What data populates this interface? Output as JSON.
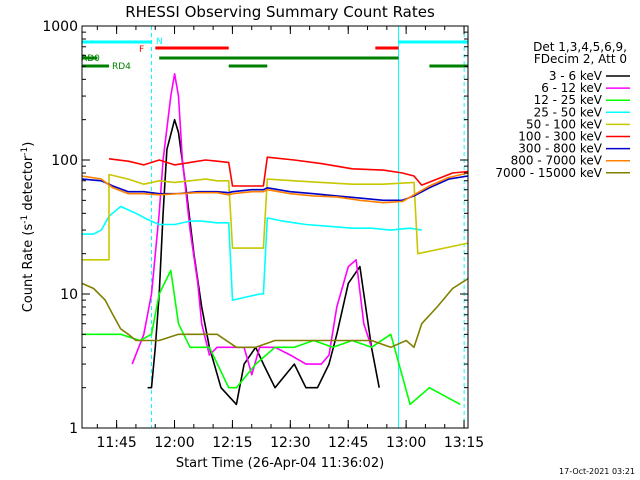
{
  "chart_data": {
    "type": "line",
    "title": "RHESSI Observing Summary Count Rates",
    "xlabel": "Start Time (26-Apr-04 11:36:02)",
    "ylabel_main": "Count Rate (s",
    "ylabel_sup1": "-1",
    "ylabel_mid": " detector",
    "ylabel_sup2": "-1",
    "ylabel_end": ")",
    "y_scale": "log",
    "ylim": [
      1,
      1000
    ],
    "xlim_minutes": [
      0,
      100
    ],
    "x_ticks": [
      {
        "label": "11:45",
        "t": 8.97
      },
      {
        "label": "12:00",
        "t": 23.97
      },
      {
        "label": "12:15",
        "t": 38.97
      },
      {
        "label": "12:30",
        "t": 53.97
      },
      {
        "label": "12:45",
        "t": 68.97
      },
      {
        "label": "13:00",
        "t": 83.97
      },
      {
        "label": "13:15",
        "t": 98.97
      }
    ],
    "y_ticks": [
      {
        "label": "1",
        "v": 1
      },
      {
        "label": "10",
        "v": 10
      },
      {
        "label": "100",
        "v": 100
      },
      {
        "label": "1000",
        "v": 1000
      }
    ],
    "legend_header": [
      "Det 1,3,4,5,6,9,",
      "FDecim 2, Att 0"
    ],
    "series": [
      {
        "name": "3 - 6 keV",
        "color": "#000000",
        "points": [
          [
            17,
            2
          ],
          [
            18,
            2
          ],
          [
            19,
            4
          ],
          [
            20,
            10
          ],
          [
            21,
            40
          ],
          [
            22,
            120
          ],
          [
            24,
            200
          ],
          [
            25,
            160
          ],
          [
            27,
            60
          ],
          [
            29,
            20
          ],
          [
            31,
            8
          ],
          [
            33,
            4
          ],
          [
            36,
            2
          ],
          [
            40,
            1.5
          ],
          [
            42,
            3
          ],
          [
            45,
            4
          ],
          [
            47,
            3
          ],
          [
            50,
            2
          ],
          [
            55,
            3
          ],
          [
            58,
            2
          ],
          [
            61,
            2
          ],
          [
            64,
            3
          ],
          [
            66,
            5
          ],
          [
            69,
            12
          ],
          [
            72,
            16
          ],
          [
            75,
            4
          ],
          [
            77,
            2
          ]
        ]
      },
      {
        "name": "6 - 12 keV",
        "color": "#ff00ff",
        "points": [
          [
            13,
            3
          ],
          [
            16,
            5
          ],
          [
            18,
            10
          ],
          [
            20,
            40
          ],
          [
            21,
            100
          ],
          [
            23,
            300
          ],
          [
            24,
            440
          ],
          [
            25,
            300
          ],
          [
            26,
            100
          ],
          [
            28,
            30
          ],
          [
            30,
            12
          ],
          [
            31,
            6
          ],
          [
            33,
            3.5
          ],
          [
            35,
            4
          ],
          [
            38,
            4
          ],
          [
            42,
            4
          ],
          [
            44,
            2.5
          ],
          [
            46,
            4
          ],
          [
            50,
            4
          ],
          [
            54,
            3.5
          ],
          [
            58,
            3
          ],
          [
            62,
            3
          ],
          [
            64,
            3.5
          ],
          [
            66,
            8
          ],
          [
            69,
            16
          ],
          [
            71,
            18
          ],
          [
            73,
            6
          ],
          [
            75,
            4
          ]
        ]
      },
      {
        "name": "12 - 25 keV",
        "color": "#00ff00",
        "points": [
          [
            0,
            5
          ],
          [
            5,
            5
          ],
          [
            10,
            5
          ],
          [
            15,
            4.5
          ],
          [
            18,
            5
          ],
          [
            20,
            10
          ],
          [
            23,
            15
          ],
          [
            25,
            6
          ],
          [
            28,
            4
          ],
          [
            33,
            4
          ],
          [
            38,
            2
          ],
          [
            40,
            2
          ],
          [
            45,
            3
          ],
          [
            50,
            4
          ],
          [
            55,
            4
          ],
          [
            60,
            4.5
          ],
          [
            65,
            4
          ],
          [
            70,
            4.5
          ],
          [
            75,
            4
          ],
          [
            80,
            5
          ],
          [
            85,
            1.5
          ],
          [
            90,
            2
          ],
          [
            98,
            1.5
          ]
        ]
      },
      {
        "name": "25 - 50 keV",
        "color": "#00ffff",
        "points": [
          [
            0,
            28
          ],
          [
            3,
            28
          ],
          [
            5,
            30
          ],
          [
            7,
            38
          ],
          [
            10,
            45
          ],
          [
            14,
            40
          ],
          [
            17,
            36
          ],
          [
            20,
            33
          ],
          [
            24,
            33
          ],
          [
            28,
            35
          ],
          [
            31,
            35
          ],
          [
            35,
            34
          ],
          [
            38,
            34
          ],
          [
            39,
            9
          ],
          [
            46,
            10
          ],
          [
            47,
            10
          ],
          [
            48,
            37
          ],
          [
            52,
            35
          ],
          [
            58,
            33
          ],
          [
            64,
            32
          ],
          [
            70,
            31
          ],
          [
            75,
            31
          ],
          [
            80,
            30
          ],
          [
            85,
            31
          ],
          [
            88,
            30
          ]
        ]
      },
      {
        "name": "50 - 100 keV",
        "color": "#c8c800",
        "points": [
          [
            0,
            18
          ],
          [
            7,
            18
          ],
          [
            7,
            78
          ],
          [
            12,
            72
          ],
          [
            16,
            66
          ],
          [
            20,
            70
          ],
          [
            24,
            68
          ],
          [
            28,
            70
          ],
          [
            32,
            72
          ],
          [
            35,
            70
          ],
          [
            38,
            70
          ],
          [
            39,
            22
          ],
          [
            46,
            22
          ],
          [
            47,
            22
          ],
          [
            48,
            72
          ],
          [
            55,
            70
          ],
          [
            62,
            68
          ],
          [
            70,
            66
          ],
          [
            78,
            66
          ],
          [
            86,
            68
          ],
          [
            87,
            20
          ],
          [
            100,
            24
          ]
        ]
      },
      {
        "name": "100 - 300 keV",
        "color": "#ff0000",
        "points": [
          [
            7,
            102
          ],
          [
            12,
            98
          ],
          [
            16,
            92
          ],
          [
            20,
            100
          ],
          [
            24,
            92
          ],
          [
            28,
            96
          ],
          [
            32,
            100
          ],
          [
            35,
            98
          ],
          [
            38,
            96
          ],
          [
            39,
            64
          ],
          [
            47,
            64
          ],
          [
            48,
            105
          ],
          [
            55,
            100
          ],
          [
            62,
            94
          ],
          [
            70,
            86
          ],
          [
            78,
            84
          ],
          [
            83,
            80
          ],
          [
            86,
            76
          ],
          [
            88,
            65
          ],
          [
            92,
            72
          ],
          [
            96,
            80
          ],
          [
            100,
            82
          ]
        ]
      },
      {
        "name": "300 - 800 keV",
        "color": "#0000c8",
        "points": [
          [
            0,
            72
          ],
          [
            5,
            70
          ],
          [
            8,
            64
          ],
          [
            12,
            58
          ],
          [
            16,
            58
          ],
          [
            20,
            56
          ],
          [
            25,
            56
          ],
          [
            30,
            58
          ],
          [
            35,
            58
          ],
          [
            38,
            57
          ],
          [
            39,
            58
          ],
          [
            44,
            60
          ],
          [
            47,
            60
          ],
          [
            48,
            62
          ],
          [
            54,
            58
          ],
          [
            60,
            56
          ],
          [
            66,
            54
          ],
          [
            72,
            52
          ],
          [
            78,
            50
          ],
          [
            83,
            50
          ],
          [
            86,
            54
          ],
          [
            90,
            62
          ],
          [
            95,
            72
          ],
          [
            100,
            76
          ]
        ]
      },
      {
        "name": "800 - 7000 keV",
        "color": "#ff8000",
        "points": [
          [
            0,
            76
          ],
          [
            5,
            72
          ],
          [
            8,
            62
          ],
          [
            12,
            56
          ],
          [
            16,
            56
          ],
          [
            20,
            55
          ],
          [
            25,
            56
          ],
          [
            30,
            57
          ],
          [
            35,
            57
          ],
          [
            38,
            55
          ],
          [
            39,
            56
          ],
          [
            44,
            58
          ],
          [
            47,
            58
          ],
          [
            48,
            60
          ],
          [
            54,
            56
          ],
          [
            60,
            54
          ],
          [
            66,
            53
          ],
          [
            72,
            50
          ],
          [
            78,
            48
          ],
          [
            83,
            49
          ],
          [
            86,
            55
          ],
          [
            90,
            64
          ],
          [
            95,
            74
          ],
          [
            100,
            80
          ]
        ]
      },
      {
        "name": "7000 - 15000 keV",
        "color": "#808000",
        "points": [
          [
            0,
            12
          ],
          [
            3,
            11
          ],
          [
            6,
            9
          ],
          [
            8,
            7
          ],
          [
            10,
            5.5
          ],
          [
            12,
            5
          ],
          [
            14,
            4.5
          ],
          [
            16,
            4.5
          ],
          [
            20,
            4.5
          ],
          [
            25,
            5
          ],
          [
            30,
            5
          ],
          [
            35,
            5
          ],
          [
            40,
            4
          ],
          [
            45,
            4
          ],
          [
            50,
            4.5
          ],
          [
            55,
            4.5
          ],
          [
            60,
            4.5
          ],
          [
            65,
            4.5
          ],
          [
            70,
            4.5
          ],
          [
            75,
            4.5
          ],
          [
            80,
            4
          ],
          [
            84,
            4.5
          ],
          [
            86,
            4
          ],
          [
            88,
            6
          ],
          [
            92,
            8
          ],
          [
            96,
            11
          ],
          [
            100,
            13
          ]
        ]
      }
    ],
    "flag_labels": {
      "n": "N",
      "f": "F",
      "rd0": "RD0",
      "rd4": "RD4"
    },
    "footer": "17-Oct-2021 03:21"
  }
}
